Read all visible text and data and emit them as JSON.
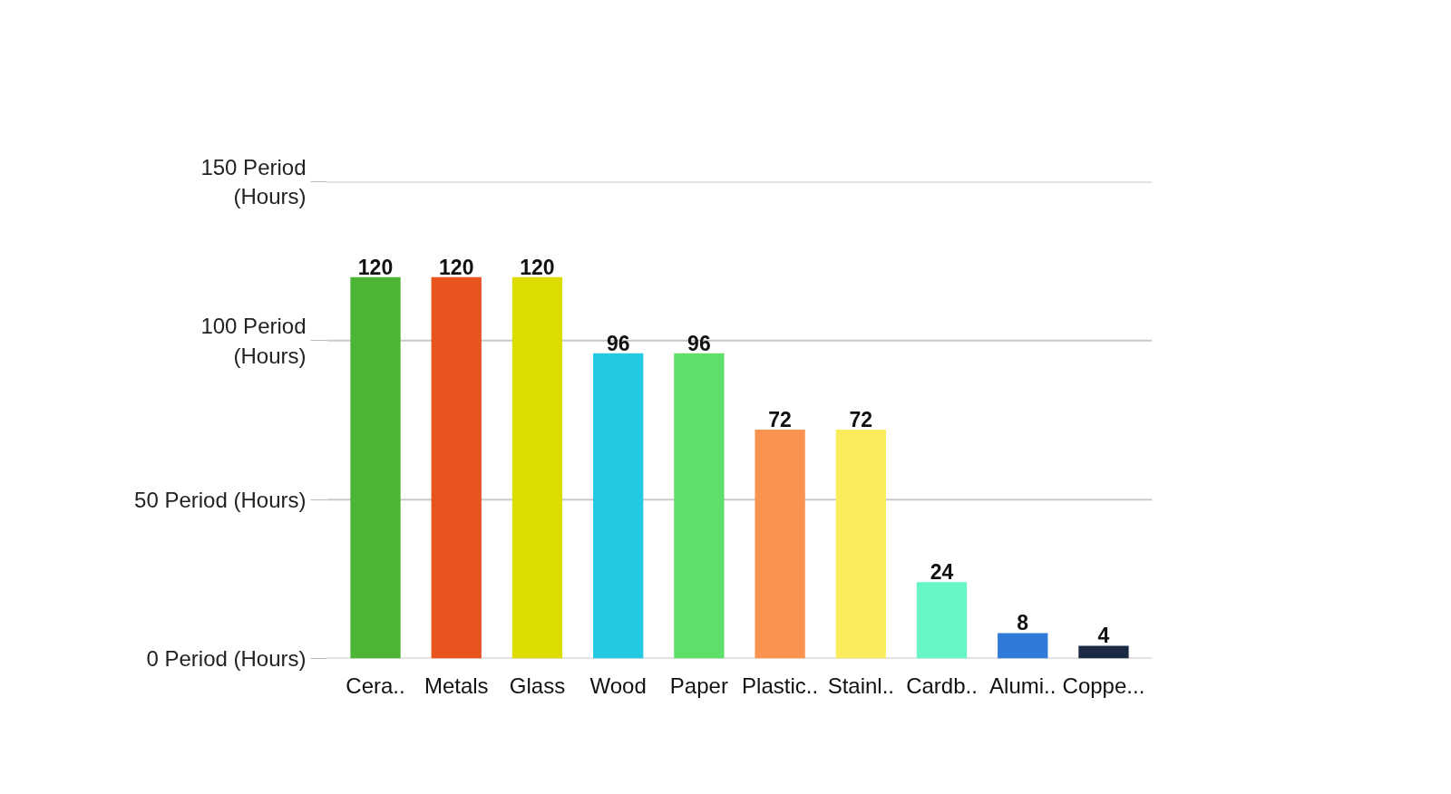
{
  "chart_data": {
    "type": "bar",
    "categories": [
      "Cera..",
      "Metals",
      "Glass",
      "Wood",
      "Paper",
      "Plastic..",
      "Stainl..",
      "Cardb..",
      "Alumi..",
      "Coppe..."
    ],
    "values": [
      120,
      120,
      120,
      96,
      96,
      72,
      72,
      24,
      8,
      4
    ],
    "colors": [
      "#4db535",
      "#e8541e",
      "#dcdc00",
      "#22c9e0",
      "#5ddf6a",
      "#fa9250",
      "#fbec5d",
      "#66f5c3",
      "#2f7ad8",
      "#1a2a45"
    ],
    "ylim": [
      0,
      150
    ],
    "yticks": [
      {
        "value": 0,
        "label": "0 Period (Hours)"
      },
      {
        "value": 50,
        "label": "50 Period (Hours)"
      },
      {
        "value": 100,
        "label": "100 Period (Hours)"
      },
      {
        "value": 150,
        "label": "150 Period (Hours)"
      }
    ],
    "grid": "y",
    "data_labels": true
  }
}
